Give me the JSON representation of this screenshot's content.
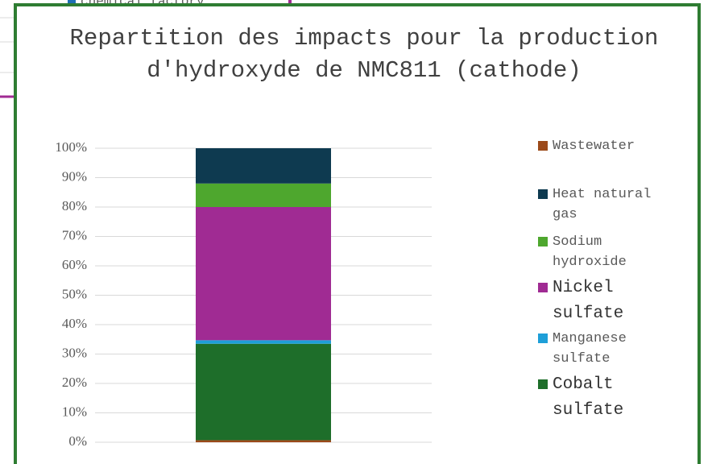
{
  "background": {
    "legend_fragment": "chemical factory"
  },
  "chart_data": {
    "type": "bar",
    "stacked": true,
    "title": "Repartition des impacts pour la production d'hydroxyde de NMC811 (cathode)",
    "categories": [
      null
    ],
    "series": [
      {
        "name": "Wastewater",
        "color": "#9c4a1a",
        "values": [
          0.7
        ]
      },
      {
        "name": "Cobalt sulfate",
        "color": "#1e6e2a",
        "values": [
          32.8
        ]
      },
      {
        "name": "Manganese sulfate",
        "color": "#1e9fd8",
        "values": [
          1.2
        ]
      },
      {
        "name": "Nickel sulfate",
        "color": "#a02b93",
        "values": [
          45.3
        ]
      },
      {
        "name": "Sodium hydroxide",
        "color": "#4ea72e",
        "values": [
          8
        ]
      },
      {
        "name": "Heat natural gas",
        "color": "#0e3a50",
        "values": [
          12
        ]
      }
    ],
    "ylim": [
      0,
      100
    ],
    "yticks": [
      {
        "value": 0,
        "label": "0%"
      },
      {
        "value": 10,
        "label": "10%"
      },
      {
        "value": 20,
        "label": "20%"
      },
      {
        "value": 30,
        "label": "30%"
      },
      {
        "value": 40,
        "label": "40%"
      },
      {
        "value": 50,
        "label": "50%"
      },
      {
        "value": 60,
        "label": "60%"
      },
      {
        "value": 70,
        "label": "70%"
      },
      {
        "value": 80,
        "label": "80%"
      },
      {
        "value": 90,
        "label": "90%"
      },
      {
        "value": 100,
        "label": "100%"
      }
    ],
    "grid": true,
    "legend": "right"
  }
}
